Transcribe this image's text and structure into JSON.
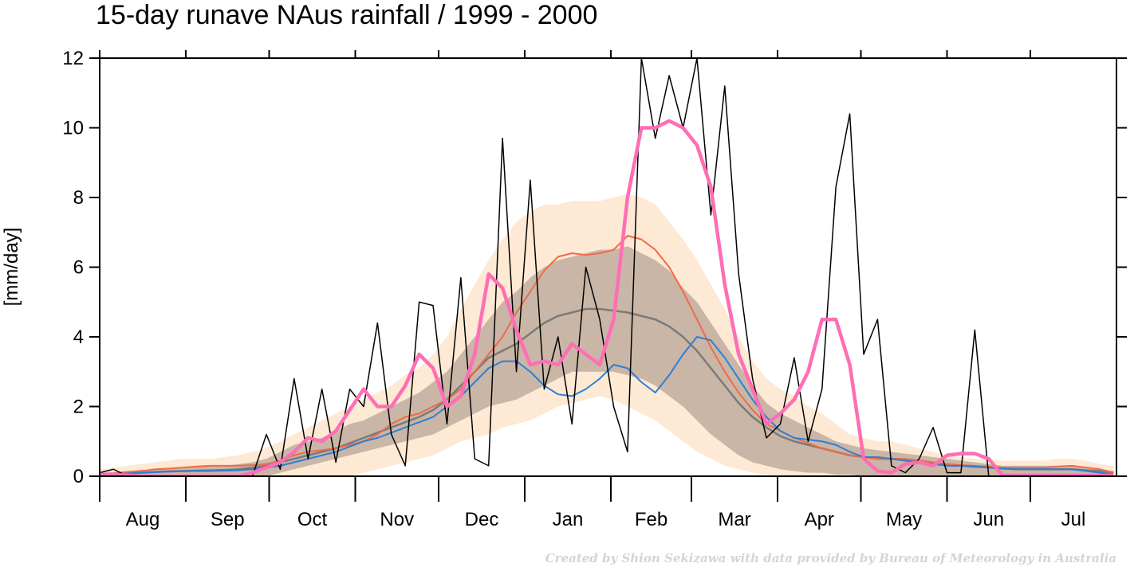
{
  "chart_data": {
    "type": "line",
    "title": "15-day runave NAus rainfall  /  1999 - 2000",
    "y_label": "[mm/day]",
    "credit": "Created by Shion Sekizawa with data provided by Bureau of Meteorology in Australia",
    "xlim": [
      0,
      366
    ],
    "xticks": [
      {
        "value": 0,
        "label": "Aug"
      },
      {
        "value": 31,
        "label": "Sep"
      },
      {
        "value": 61,
        "label": "Oct"
      },
      {
        "value": 92,
        "label": "Nov"
      },
      {
        "value": 122,
        "label": "Dec"
      },
      {
        "value": 153,
        "label": "Jan"
      },
      {
        "value": 184,
        "label": "Feb"
      },
      {
        "value": 213,
        "label": "Mar"
      },
      {
        "value": 244,
        "label": "Apr"
      },
      {
        "value": 274,
        "label": "May"
      },
      {
        "value": 305,
        "label": "Jun"
      },
      {
        "value": 335,
        "label": "Jul"
      }
    ],
    "ylim": [
      0,
      12
    ],
    "yticks": [
      0,
      2,
      4,
      6,
      8,
      10,
      12
    ],
    "x": [
      0,
      5,
      10,
      15,
      20,
      25,
      30,
      35,
      40,
      45,
      50,
      55,
      60,
      65,
      70,
      75,
      80,
      85,
      90,
      95,
      100,
      105,
      110,
      115,
      120,
      125,
      130,
      135,
      140,
      145,
      150,
      155,
      160,
      165,
      170,
      175,
      180,
      185,
      190,
      195,
      200,
      205,
      210,
      215,
      220,
      225,
      230,
      235,
      240,
      245,
      250,
      255,
      260,
      265,
      270,
      275,
      280,
      285,
      290,
      295,
      300,
      305,
      310,
      315,
      320,
      325,
      330,
      335,
      340,
      345,
      350,
      355,
      360,
      365
    ],
    "bands": [
      {
        "color": "#fde9d4",
        "low": [
          0,
          0,
          0,
          0,
          0,
          0,
          0,
          0,
          0,
          0,
          0,
          0,
          0,
          0,
          0,
          0,
          0,
          0,
          0,
          0.1,
          0.2,
          0.3,
          0.4,
          0.5,
          0.6,
          0.8,
          1.0,
          1.1,
          1.2,
          1.4,
          1.5,
          1.6,
          1.8,
          2.0,
          2.1,
          2.2,
          2.3,
          2.2,
          2.0,
          1.8,
          1.6,
          1.3,
          1.0,
          0.7,
          0.5,
          0.3,
          0.2,
          0.1,
          0.05,
          0,
          0,
          0,
          0,
          0,
          0,
          0,
          0,
          0,
          0,
          0,
          0,
          0,
          0,
          0,
          0,
          0,
          0,
          0,
          0,
          0,
          0,
          0,
          0,
          0
        ],
        "high": [
          0.2,
          0.25,
          0.3,
          0.35,
          0.4,
          0.45,
          0.5,
          0.5,
          0.5,
          0.55,
          0.6,
          0.7,
          0.8,
          1.0,
          1.2,
          1.4,
          1.6,
          1.8,
          2.0,
          2.2,
          2.4,
          2.6,
          2.9,
          3.1,
          3.5,
          4.0,
          4.8,
          5.5,
          6.2,
          6.8,
          7.3,
          7.6,
          7.8,
          7.8,
          7.9,
          7.9,
          7.9,
          8.0,
          8.1,
          8.0,
          7.8,
          7.3,
          6.8,
          6.2,
          5.5,
          4.8,
          4.0,
          3.3,
          2.8,
          2.5,
          2.3,
          2.0,
          1.8,
          1.5,
          1.2,
          1.1,
          1.0,
          1.0,
          0.9,
          0.8,
          0.7,
          0.6,
          0.55,
          0.5,
          0.5,
          0.45,
          0.45,
          0.45,
          0.45,
          0.5,
          0.5,
          0.45,
          0.35,
          0.3
        ]
      },
      {
        "color": "#c9b6a6",
        "low": [
          0,
          0,
          0,
          0,
          0,
          0,
          0,
          0,
          0,
          0,
          0,
          0,
          0,
          0.1,
          0.2,
          0.3,
          0.4,
          0.5,
          0.6,
          0.7,
          0.8,
          0.9,
          1.0,
          1.1,
          1.2,
          1.4,
          1.6,
          1.8,
          2.0,
          2.1,
          2.2,
          2.4,
          2.6,
          2.8,
          3.0,
          3.0,
          3.0,
          3.0,
          2.9,
          2.8,
          2.6,
          2.3,
          2.0,
          1.6,
          1.2,
          0.9,
          0.6,
          0.4,
          0.3,
          0.2,
          0.15,
          0.1,
          0.1,
          0.05,
          0.05,
          0,
          0,
          0,
          0,
          0,
          0,
          0,
          0,
          0,
          0,
          0,
          0,
          0,
          0,
          0,
          0,
          0,
          0,
          0
        ],
        "high": [
          0.1,
          0.12,
          0.15,
          0.18,
          0.2,
          0.22,
          0.25,
          0.28,
          0.3,
          0.3,
          0.35,
          0.4,
          0.5,
          0.7,
          0.9,
          1.0,
          1.1,
          1.3,
          1.5,
          1.6,
          1.8,
          2.0,
          2.2,
          2.4,
          2.7,
          3.0,
          3.5,
          4.0,
          4.5,
          5.0,
          5.3,
          5.7,
          6.0,
          6.2,
          6.3,
          6.4,
          6.5,
          6.5,
          6.6,
          6.4,
          6.2,
          5.9,
          5.4,
          5.0,
          4.4,
          3.8,
          3.2,
          2.6,
          2.1,
          1.8,
          1.6,
          1.4,
          1.2,
          1.0,
          0.9,
          0.8,
          0.75,
          0.7,
          0.65,
          0.6,
          0.55,
          0.5,
          0.45,
          0.4,
          0.35,
          0.3,
          0.3,
          0.3,
          0.3,
          0.3,
          0.3,
          0.25,
          0.2,
          0.15
        ]
      }
    ],
    "series": [
      {
        "color": "#7a7a7a",
        "width": 2.5,
        "values": [
          0.05,
          0.06,
          0.08,
          0.1,
          0.12,
          0.14,
          0.15,
          0.16,
          0.17,
          0.18,
          0.2,
          0.25,
          0.3,
          0.4,
          0.5,
          0.6,
          0.7,
          0.8,
          0.95,
          1.1,
          1.25,
          1.4,
          1.55,
          1.7,
          1.9,
          2.2,
          2.6,
          3.0,
          3.4,
          3.6,
          3.8,
          4.1,
          4.4,
          4.6,
          4.7,
          4.8,
          4.8,
          4.75,
          4.7,
          4.6,
          4.5,
          4.3,
          4.0,
          3.6,
          3.1,
          2.6,
          2.1,
          1.7,
          1.4,
          1.15,
          1.0,
          0.9,
          0.8,
          0.7,
          0.6,
          0.55,
          0.5,
          0.5,
          0.45,
          0.4,
          0.35,
          0.32,
          0.3,
          0.27,
          0.25,
          0.22,
          0.2,
          0.2,
          0.2,
          0.2,
          0.2,
          0.17,
          0.15,
          0.1
        ]
      },
      {
        "color": "#f06a4a",
        "width": 2,
        "values": [
          0.05,
          0.08,
          0.12,
          0.15,
          0.2,
          0.22,
          0.25,
          0.28,
          0.3,
          0.3,
          0.3,
          0.32,
          0.35,
          0.45,
          0.6,
          0.7,
          0.75,
          0.8,
          0.9,
          1.0,
          1.2,
          1.5,
          1.7,
          1.8,
          2.0,
          2.2,
          2.5,
          3.0,
          3.5,
          4.0,
          4.7,
          5.3,
          5.9,
          6.3,
          6.4,
          6.35,
          6.4,
          6.5,
          6.9,
          6.8,
          6.5,
          6.0,
          5.3,
          4.5,
          3.7,
          3.0,
          2.4,
          1.9,
          1.5,
          1.3,
          1.1,
          0.95,
          0.8,
          0.7,
          0.6,
          0.55,
          0.5,
          0.5,
          0.5,
          0.45,
          0.4,
          0.35,
          0.32,
          0.3,
          0.28,
          0.25,
          0.25,
          0.25,
          0.25,
          0.28,
          0.3,
          0.25,
          0.2,
          0.1
        ]
      },
      {
        "color": "#2b7fd6",
        "width": 2,
        "values": [
          0.05,
          0.06,
          0.08,
          0.1,
          0.12,
          0.13,
          0.14,
          0.15,
          0.15,
          0.16,
          0.17,
          0.2,
          0.25,
          0.3,
          0.4,
          0.5,
          0.6,
          0.7,
          0.85,
          1.0,
          1.1,
          1.25,
          1.4,
          1.55,
          1.7,
          2.0,
          2.3,
          2.7,
          3.1,
          3.3,
          3.3,
          3.0,
          2.6,
          2.35,
          2.3,
          2.5,
          2.8,
          3.2,
          3.1,
          2.7,
          2.4,
          2.9,
          3.5,
          4.0,
          3.9,
          3.4,
          2.8,
          2.2,
          1.7,
          1.3,
          1.1,
          1.05,
          1.0,
          0.9,
          0.7,
          0.55,
          0.55,
          0.5,
          0.45,
          0.4,
          0.35,
          0.3,
          0.3,
          0.28,
          0.25,
          0.22,
          0.2,
          0.2,
          0.2,
          0.2,
          0.2,
          0.15,
          0.1,
          0.05
        ]
      },
      {
        "color": "#000000",
        "width": 1.5,
        "values": [
          0.1,
          0.2,
          0,
          0,
          0,
          0,
          0,
          0,
          0,
          0,
          0,
          0,
          1.2,
          0.2,
          2.8,
          0.5,
          2.5,
          0.4,
          2.5,
          2.0,
          4.4,
          1.2,
          0.3,
          5.0,
          4.9,
          1.5,
          5.7,
          0.5,
          0.3,
          9.7,
          3.0,
          8.5,
          2.5,
          4.0,
          1.5,
          6.0,
          4.5,
          2.0,
          0.7,
          12,
          9.7,
          11.5,
          10.0,
          12,
          7.5,
          11.2,
          5.8,
          2.8,
          1.1,
          1.5,
          3.4,
          1.0,
          2.5,
          8.3,
          10.4,
          3.5,
          4.5,
          0.3,
          0.1,
          0.5,
          1.4,
          0.1,
          0.1,
          4.2,
          0,
          0,
          0.05,
          0.05,
          0.05,
          0,
          0,
          0,
          0,
          0
        ]
      },
      {
        "color": "#ff6eb4",
        "width": 4.5,
        "values": [
          0.05,
          0.05,
          0.03,
          0,
          0,
          0,
          0,
          0,
          0,
          0,
          0,
          0.1,
          0.25,
          0.4,
          0.7,
          1.1,
          1.0,
          1.3,
          1.9,
          2.5,
          2.0,
          2.0,
          2.6,
          3.5,
          3.1,
          2.0,
          2.3,
          3.5,
          5.8,
          5.4,
          4.2,
          3.2,
          3.3,
          3.2,
          3.8,
          3.5,
          3.2,
          4.5,
          8.0,
          10.0,
          10.0,
          10.2,
          10.0,
          9.5,
          8.3,
          5.5,
          3.5,
          2.5,
          1.5,
          1.8,
          2.2,
          3.0,
          4.5,
          4.5,
          3.2,
          0.5,
          0.15,
          0.1,
          0.35,
          0.4,
          0.3,
          0.6,
          0.65,
          0.65,
          0.5,
          0.02,
          0.02,
          0.02,
          0.02,
          0.02,
          0.02,
          0.02,
          0.02,
          0.02
        ]
      }
    ]
  }
}
